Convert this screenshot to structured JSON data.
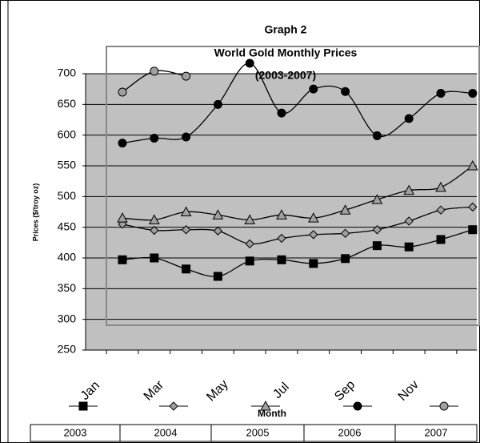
{
  "chart_data": {
    "type": "line",
    "title": "Graph 2",
    "subtitle": "World Gold Monthly Prices",
    "subtitle2": "(2003-2007)",
    "y_label": "Prices ($/troy oz)",
    "x_label": "Month",
    "categories": [
      "Jan",
      null,
      "Mar",
      null,
      "May",
      null,
      "Jul",
      null,
      "Sep",
      null,
      "Nov",
      null
    ],
    "ylim": [
      250,
      700
    ],
    "yticks": [
      250,
      300,
      350,
      400,
      450,
      500,
      550,
      600,
      650,
      700
    ],
    "grid": true,
    "legend": "bottom",
    "series": [
      {
        "name": "2003",
        "color": "#000000",
        "marker": "square",
        "values": [
          397,
          400,
          382,
          370,
          395,
          397,
          391,
          399,
          420,
          418,
          430,
          446
        ]
      },
      {
        "name": "2004",
        "color": "#a0a0a0",
        "marker": "diamond",
        "values": [
          455,
          445,
          446,
          444,
          423,
          432,
          438,
          440,
          446,
          460,
          478,
          483
        ]
      },
      {
        "name": "2005",
        "color": "#a0a0a0",
        "marker": "triangle",
        "values": [
          465,
          462,
          475,
          470,
          462,
          470,
          465,
          478,
          495,
          510,
          515,
          550
        ]
      },
      {
        "name": "2006",
        "color": "#000000",
        "marker": "circle",
        "values": [
          587,
          595,
          597,
          650,
          717,
          636,
          675,
          671,
          599,
          627,
          668,
          668
        ]
      },
      {
        "name": "2007",
        "color": "#a0a0a0",
        "marker": "circle",
        "values": [
          670,
          704,
          696,
          null,
          null,
          null,
          null,
          null,
          null,
          null,
          null,
          null
        ]
      }
    ]
  }
}
